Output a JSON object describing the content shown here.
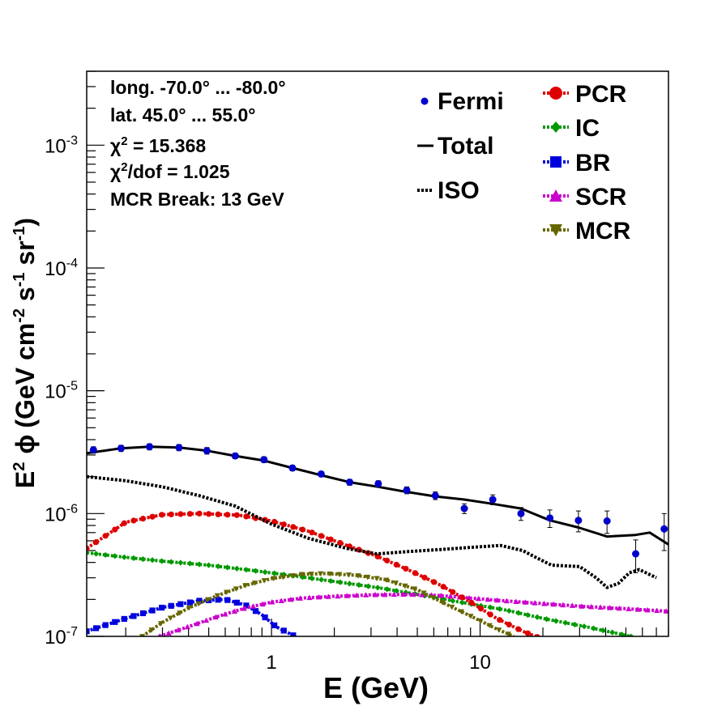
{
  "chart_data": {
    "type": "scatter",
    "xlabel": "E (GeV)",
    "ylabel_parts": {
      "e": "E",
      "e_exp": "2",
      "phi": "ϕ",
      "open": "(GeV cm",
      "cm_exp": "-2",
      "s": " s",
      "s_exp": "-1",
      "sr": " sr",
      "sr_exp": "-1",
      "close": ")"
    },
    "x_scale": "log",
    "y_scale": "log",
    "xlim": [
      0.13,
      80
    ],
    "ylim": [
      1e-07,
      0.004
    ],
    "x_tick_labels": [
      {
        "value": 1,
        "label": "1"
      },
      {
        "value": 10,
        "label": "10"
      }
    ],
    "y_tick_labels": [
      {
        "value": 1e-07,
        "base": "10",
        "exp": "-7"
      },
      {
        "value": 1e-06,
        "base": "10",
        "exp": "-6"
      },
      {
        "value": 1e-05,
        "base": "10",
        "exp": "-5"
      },
      {
        "value": 0.0001,
        "base": "10",
        "exp": "-4"
      },
      {
        "value": 0.001,
        "base": "10",
        "exp": "-3"
      }
    ],
    "annotations": {
      "lon": "long. -70.0° ... -80.0°",
      "lat": "lat. 45.0° ... 55.0°",
      "chi2_prefix": "χ",
      "chi2_sup": "2",
      "chi2_value": " = 15.368",
      "chi2dof_prefix": "χ",
      "chi2dof_sup": "2",
      "chi2dof_value": "/dof = 1.025",
      "break": "MCR Break: 13 GeV"
    },
    "legend": [
      {
        "key": "fermi",
        "label": "Fermi"
      },
      {
        "key": "total",
        "label": "Total"
      },
      {
        "key": "iso",
        "label": "ISO"
      },
      {
        "key": "pcr",
        "label": "PCR"
      },
      {
        "key": "ic",
        "label": "IC"
      },
      {
        "key": "br",
        "label": "BR"
      },
      {
        "key": "scr",
        "label": "SCR"
      },
      {
        "key": "mcr",
        "label": "MCR"
      }
    ],
    "colors": {
      "fermi": "#0000cc",
      "total": "#000000",
      "iso": "#000000",
      "pcr": "#dd0000",
      "ic": "#009900",
      "br": "#0000dd",
      "scr": "#cc00cc",
      "mcr": "#666600"
    },
    "fermi_points": [
      {
        "x": 0.14,
        "y": 3.3e-06,
        "err": 2e-07
      },
      {
        "x": 0.19,
        "y": 3.4e-06,
        "err": 2e-07
      },
      {
        "x": 0.26,
        "y": 3.5e-06,
        "err": 2e-07
      },
      {
        "x": 0.36,
        "y": 3.45e-06,
        "err": 2e-07
      },
      {
        "x": 0.49,
        "y": 3.25e-06,
        "err": 2e-07
      },
      {
        "x": 0.67,
        "y": 2.95e-06,
        "err": 1.5e-07
      },
      {
        "x": 0.92,
        "y": 2.75e-06,
        "err": 1.5e-07
      },
      {
        "x": 1.26,
        "y": 2.35e-06,
        "err": 1.2e-07
      },
      {
        "x": 1.73,
        "y": 2.1e-06,
        "err": 1e-07
      },
      {
        "x": 2.37,
        "y": 1.8e-06,
        "err": 1e-07
      },
      {
        "x": 3.25,
        "y": 1.75e-06,
        "err": 1e-07
      },
      {
        "x": 4.45,
        "y": 1.55e-06,
        "err": 1e-07
      },
      {
        "x": 6.1,
        "y": 1.4e-06,
        "err": 1e-07
      },
      {
        "x": 8.4,
        "y": 1.1e-06,
        "err": 1e-07
      },
      {
        "x": 11.5,
        "y": 1.3e-06,
        "err": 1.2e-07
      },
      {
        "x": 15.7,
        "y": 1e-06,
        "err": 1.2e-07
      },
      {
        "x": 21.6,
        "y": 9.2e-07,
        "err": 1.5e-07
      },
      {
        "x": 29.6,
        "y": 8.8e-07,
        "err": 1.7e-07
      },
      {
        "x": 40.6,
        "y": 8.7e-07,
        "err": 1.8e-07
      },
      {
        "x": 55.7,
        "y": 4.7e-07,
        "err": 1.4e-07
      },
      {
        "x": 76.3,
        "y": 7.5e-07,
        "err": 2.5e-07
      }
    ],
    "series": [
      {
        "key": "total",
        "style": "solid",
        "marker": "none",
        "x": [
          0.13,
          0.19,
          0.26,
          0.36,
          0.49,
          0.67,
          0.92,
          1.26,
          1.73,
          2.37,
          3.25,
          4.45,
          6.1,
          8.4,
          11.5,
          15.7,
          21.6,
          29.6,
          40.6,
          55.7,
          65,
          80
        ],
        "y": [
          3.1e-06,
          3.4e-06,
          3.5e-06,
          3.45e-06,
          3.25e-06,
          2.95e-06,
          2.7e-06,
          2.35e-06,
          2.05e-06,
          1.8e-06,
          1.65e-06,
          1.5e-06,
          1.38e-06,
          1.3e-06,
          1.2e-06,
          1.1e-06,
          8.8e-07,
          7.7e-07,
          6.5e-07,
          6.7e-07,
          7e-07,
          5.6e-07
        ]
      },
      {
        "key": "iso",
        "style": "dotted",
        "marker": "none",
        "x": [
          0.13,
          0.2,
          0.3,
          0.45,
          0.67,
          1.0,
          1.5,
          2.3,
          3.2,
          4.5,
          6.5,
          9.0,
          12.5,
          16.0,
          18.0,
          22.0,
          30.0,
          36.0,
          40.6,
          46.0,
          52.0,
          58.0,
          70.0
        ],
        "y": [
          2e-06,
          1.85e-06,
          1.65e-06,
          1.4e-06,
          1.15e-06,
          8.2e-07,
          6.3e-07,
          5.2e-07,
          4.7e-07,
          4.9e-07,
          5.1e-07,
          5.3e-07,
          5.5e-07,
          5e-07,
          4.5e-07,
          3.8e-07,
          3.7e-07,
          3e-07,
          2.5e-07,
          2.7e-07,
          3.3e-07,
          3.5e-07,
          3e-07
        ]
      },
      {
        "key": "pcr",
        "style": "dashdot",
        "marker": "circle",
        "x": [
          0.13,
          0.2,
          0.3,
          0.45,
          0.7,
          1.0,
          1.5,
          2.3,
          3.2,
          4.5,
          6.5,
          9.0,
          12.0,
          16.0,
          20.0
        ],
        "y": [
          5.2e-07,
          8.5e-07,
          9.8e-07,
          1e-06,
          9.7e-07,
          8.7e-07,
          7.2e-07,
          5.5e-07,
          4.5e-07,
          3.5e-07,
          2.6e-07,
          1.9e-07,
          1.4e-07,
          1.1e-07,
          9.5e-08
        ]
      },
      {
        "key": "ic",
        "style": "dashdot",
        "marker": "diamond",
        "x": [
          0.13,
          0.2,
          0.3,
          0.5,
          0.8,
          1.3,
          2.0,
          3.2,
          5.0,
          8.0,
          13.0,
          20.0,
          32.0,
          50.0,
          65.0
        ],
        "y": [
          4.8e-07,
          4.4e-07,
          4.1e-07,
          3.8e-07,
          3.45e-07,
          3.1e-07,
          2.8e-07,
          2.5e-07,
          2.2e-07,
          1.9e-07,
          1.65e-07,
          1.4e-07,
          1.2e-07,
          1.02e-07,
          9.2e-08
        ]
      },
      {
        "key": "br",
        "style": "dashdot",
        "marker": "square",
        "x": [
          0.13,
          0.2,
          0.3,
          0.45,
          0.6,
          0.75,
          0.9,
          1.05,
          1.3
        ],
        "y": [
          1.1e-07,
          1.4e-07,
          1.72e-07,
          1.95e-07,
          2e-07,
          1.8e-07,
          1.5e-07,
          1.2e-07,
          1e-07
        ]
      },
      {
        "key": "scr",
        "style": "dashdot",
        "marker": "triangle-up",
        "x": [
          0.29,
          0.4,
          0.55,
          0.75,
          1.0,
          1.4,
          2.0,
          3.0,
          4.5,
          6.5,
          9.0,
          13.0,
          20.0,
          32.0,
          50.0,
          80.0
        ],
        "y": [
          1e-07,
          1.2e-07,
          1.45e-07,
          1.7e-07,
          1.9e-07,
          2.05e-07,
          2.12e-07,
          2.18e-07,
          2.2e-07,
          2.15e-07,
          2.05e-07,
          1.95e-07,
          1.85e-07,
          1.75e-07,
          1.68e-07,
          1.6e-07
        ]
      },
      {
        "key": "mcr",
        "style": "dashdot",
        "marker": "triangle-down",
        "x": [
          0.24,
          0.3,
          0.4,
          0.55,
          0.75,
          1.0,
          1.4,
          1.8,
          2.5,
          3.5,
          5.0,
          7.0,
          9.5,
          12.0,
          14.5
        ],
        "y": [
          1e-07,
          1.3e-07,
          1.7e-07,
          2.15e-07,
          2.6e-07,
          2.95e-07,
          3.2e-07,
          3.25e-07,
          3.15e-07,
          2.9e-07,
          2.4e-07,
          1.8e-07,
          1.4e-07,
          1.15e-07,
          1e-07
        ]
      }
    ]
  }
}
